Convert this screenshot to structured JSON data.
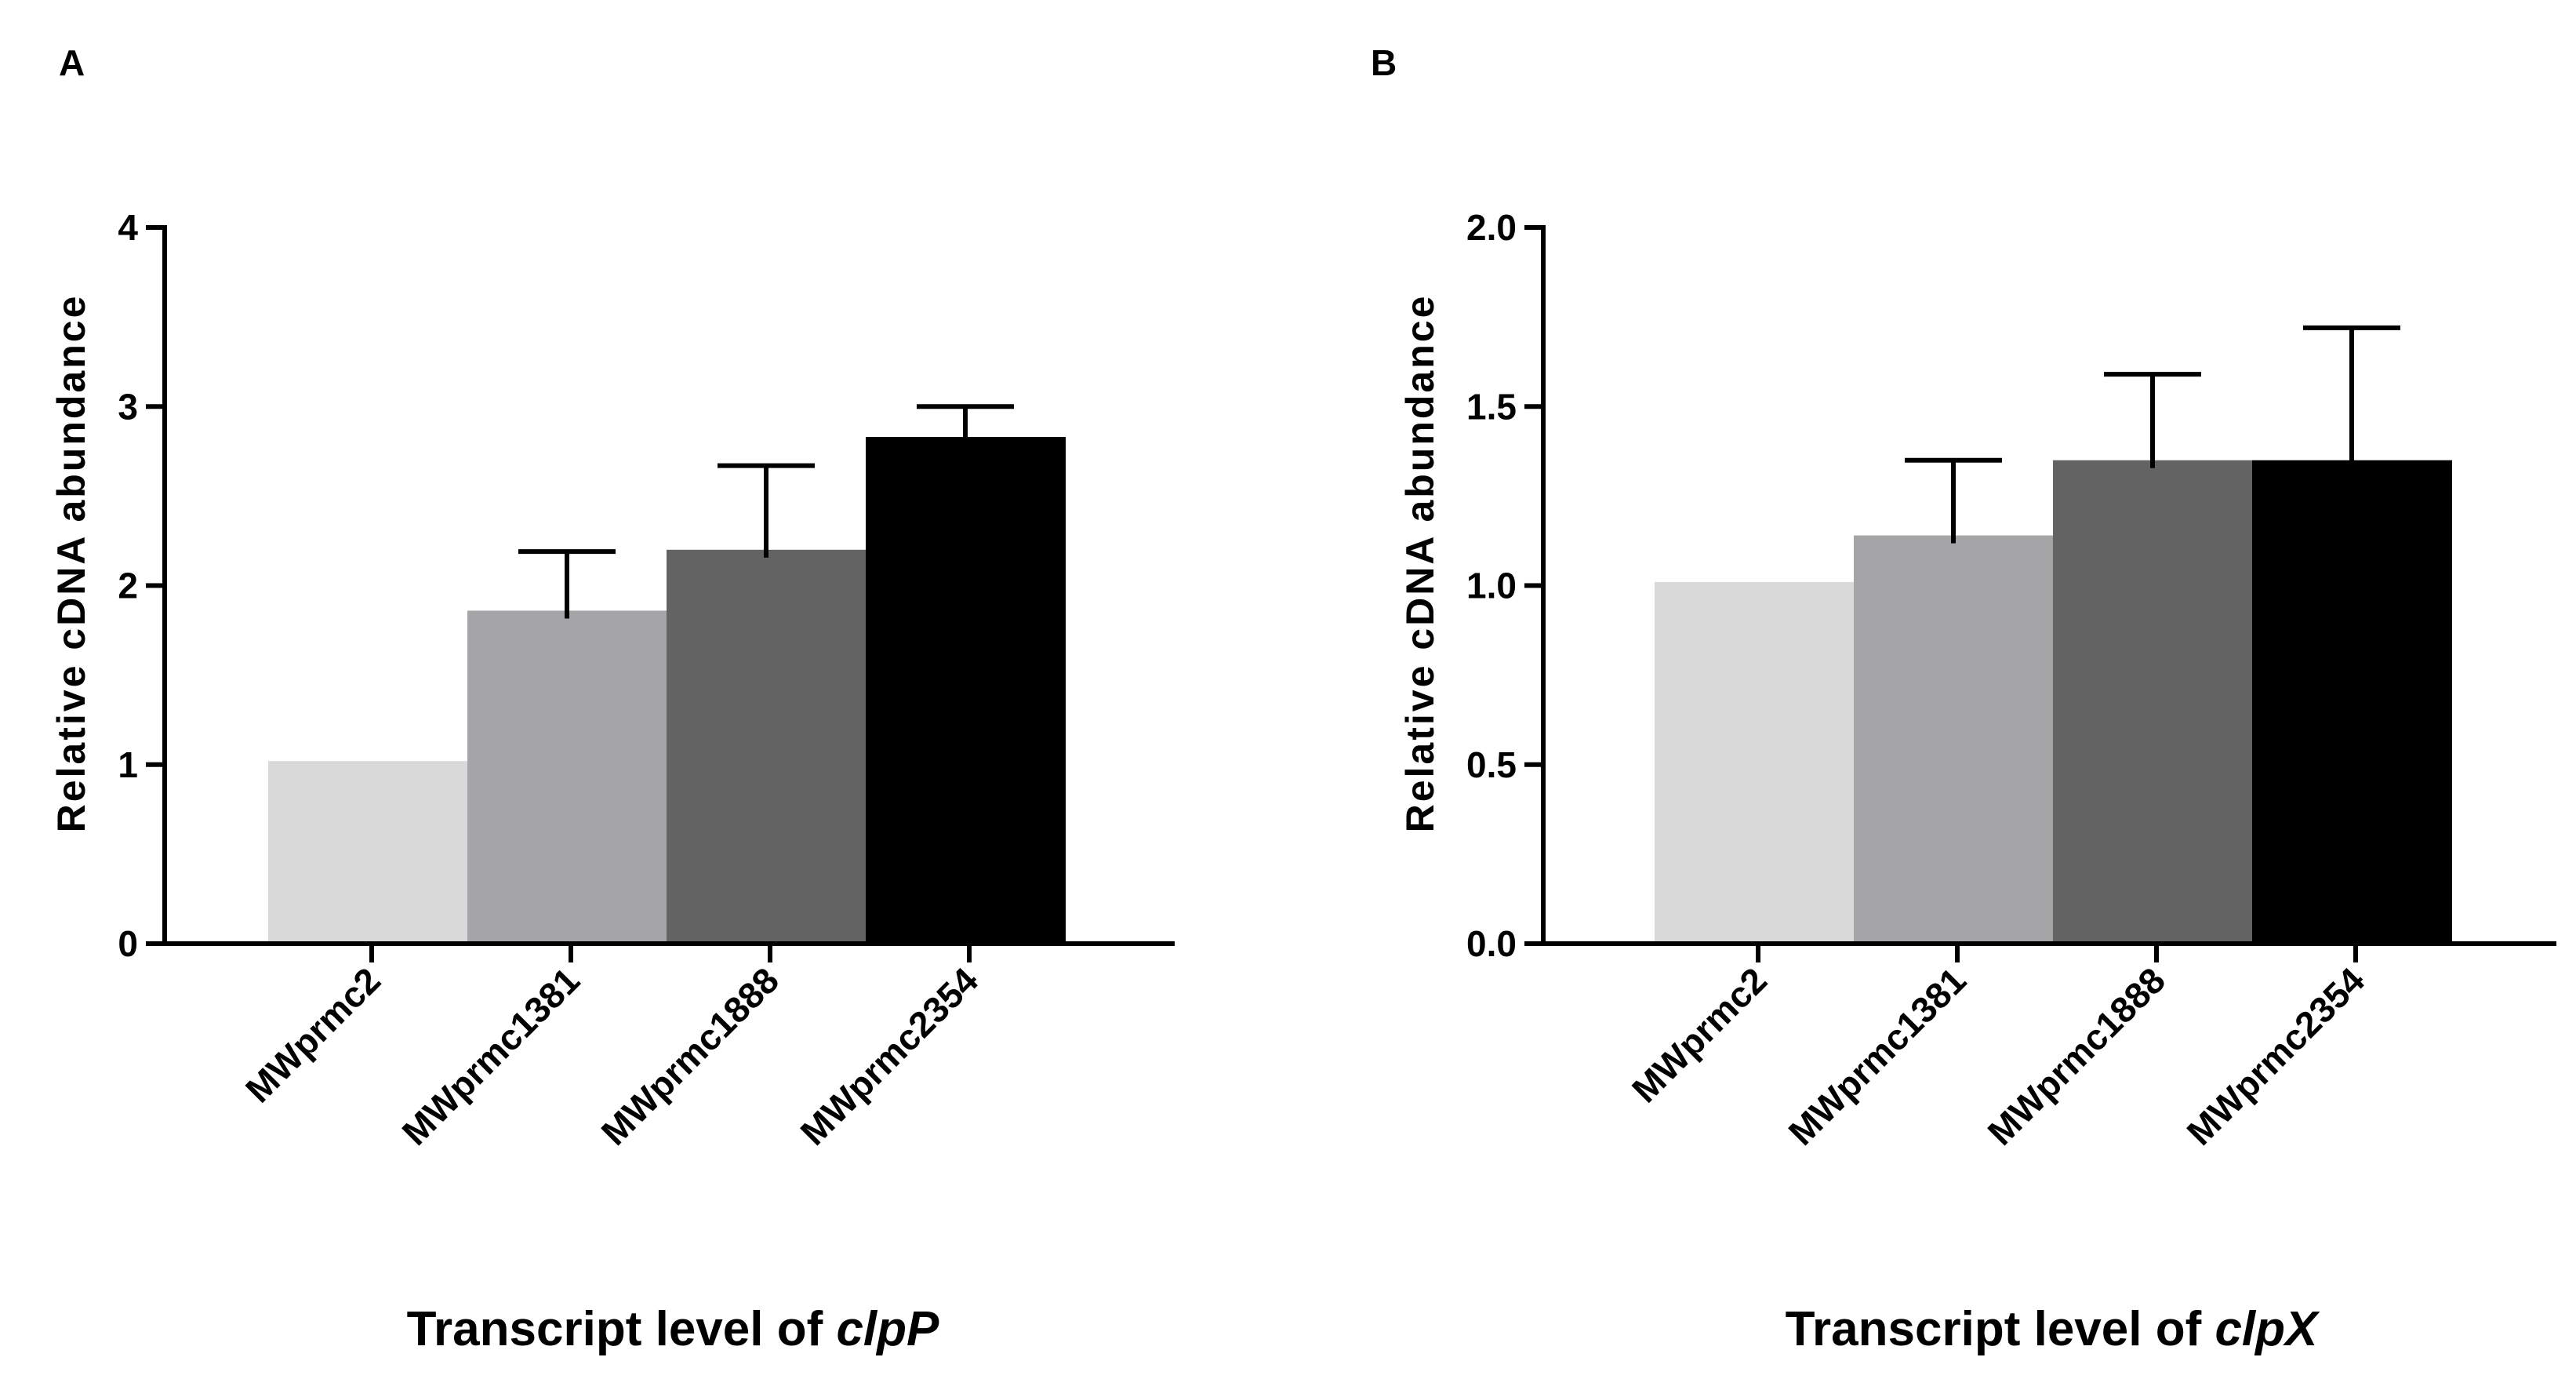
{
  "chart_data": [
    {
      "panel": "A",
      "type": "bar",
      "categories": [
        "MWprmc2",
        "MWprmc1381",
        "MWprmc1888",
        "MWprmc2354"
      ],
      "values": [
        1.02,
        1.86,
        2.2,
        2.83
      ],
      "errors": [
        0,
        0.33,
        0.47,
        0.17
      ],
      "colors": [
        "#d9d9d9",
        "#a5a5a8",
        "#636363",
        "#000000"
      ],
      "title": "",
      "xlabel_prefix": "Transcript level of ",
      "xlabel_gene": "clpP",
      "ylabel": "Relative cDNA abundance",
      "ylim": [
        0,
        4
      ],
      "yticks": [
        0,
        1,
        2,
        3,
        4
      ],
      "ytick_labels": [
        "0",
        "1",
        "2",
        "3",
        "4"
      ]
    },
    {
      "panel": "B",
      "type": "bar",
      "categories": [
        "MWprmc2",
        "MWprmc1381",
        "MWprmc1888",
        "MWprmc2354"
      ],
      "values": [
        1.01,
        1.14,
        1.35,
        1.35
      ],
      "errors": [
        0,
        0.21,
        0.24,
        0.37
      ],
      "colors": [
        "#d9d9d9",
        "#a5a5a8",
        "#636363",
        "#000000"
      ],
      "title": "",
      "xlabel_prefix": "Transcript level of ",
      "xlabel_gene": "clpX",
      "ylabel": "Relative cDNA abundance",
      "ylim": [
        0,
        2
      ],
      "yticks": [
        0,
        0.5,
        1,
        1.5,
        2
      ],
      "ytick_labels": [
        "0.0",
        "0.5",
        "1.0",
        "1.5",
        "2.0"
      ]
    }
  ]
}
